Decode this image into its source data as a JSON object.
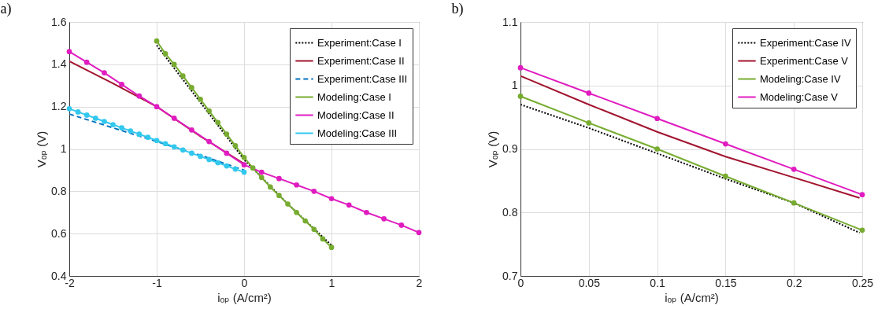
{
  "chart_data": [
    {
      "type": "line",
      "title": "a)",
      "xlabel": "iₒₚ (A/cm²)",
      "ylabel": "Vₒₚ (V)",
      "xlim": [
        -2,
        2
      ],
      "ylim": [
        0.4,
        1.6
      ],
      "xticks": [
        -2,
        -1,
        0,
        1,
        2
      ],
      "yticks": [
        0.4,
        0.6,
        0.8,
        1,
        1.2,
        1.4,
        1.6
      ],
      "grid": true,
      "legend": "top right",
      "series": [
        {
          "name": "Experiment:Case I",
          "color": "#000000",
          "line_style": "dotted",
          "marker": "none",
          "x": [
            -1,
            -0.5,
            0,
            0.5,
            1
          ],
          "values": [
            1.49,
            1.22,
            0.95,
            0.74,
            0.545
          ]
        },
        {
          "name": "Experiment:Case II",
          "color": "#a2142f",
          "line_style": "solid",
          "marker": "none",
          "x": [
            -2,
            -1.5,
            -1,
            -0.5,
            0
          ],
          "values": [
            1.415,
            1.31,
            1.2,
            1.06,
            0.93
          ]
        },
        {
          "name": "Experiment:Case III",
          "color": "#0072bd",
          "line_style": "dashed",
          "marker": "none",
          "x": [
            -2,
            -1.5,
            -1,
            -0.5,
            0
          ],
          "values": [
            1.165,
            1.1,
            1.035,
            0.97,
            0.9
          ]
        },
        {
          "name": "Modeling:Case I",
          "color": "#77ac30",
          "line_style": "solid",
          "marker": "circle",
          "x": [
            -1,
            -0.9,
            -0.8,
            -0.7,
            -0.6,
            -0.5,
            -0.4,
            -0.3,
            -0.2,
            -0.1,
            0,
            0.1,
            0.2,
            0.3,
            0.4,
            0.5,
            0.6,
            0.7,
            0.8,
            0.9,
            1
          ],
          "values": [
            1.51,
            1.45,
            1.4,
            1.345,
            1.29,
            1.235,
            1.18,
            1.125,
            1.07,
            1.015,
            0.96,
            0.91,
            0.865,
            0.82,
            0.78,
            0.74,
            0.7,
            0.66,
            0.62,
            0.575,
            0.535
          ]
        },
        {
          "name": "Modeling:Case II",
          "color": "#e01cc0",
          "line_style": "solid",
          "marker": "circle",
          "x": [
            -2,
            -1.8,
            -1.6,
            -1.4,
            -1.2,
            -1,
            -0.8,
            -0.6,
            -0.4,
            -0.2,
            0,
            0.2,
            0.4,
            0.6,
            0.8,
            1,
            1.2,
            1.4,
            1.6,
            1.8,
            2
          ],
          "values": [
            1.46,
            1.41,
            1.36,
            1.305,
            1.25,
            1.2,
            1.145,
            1.09,
            1.035,
            0.98,
            0.925,
            0.89,
            0.86,
            0.83,
            0.8,
            0.765,
            0.735,
            0.7,
            0.67,
            0.64,
            0.605
          ]
        },
        {
          "name": "Modeling:Case III",
          "color": "#32c8ee",
          "line_style": "solid",
          "marker": "circle",
          "x": [
            -2,
            -1.9,
            -1.8,
            -1.7,
            -1.6,
            -1.5,
            -1.4,
            -1.3,
            -1.2,
            -1.1,
            -1,
            -0.9,
            -0.8,
            -0.7,
            -0.6,
            -0.5,
            -0.4,
            -0.3,
            -0.2,
            -0.1,
            0
          ],
          "values": [
            1.19,
            1.175,
            1.16,
            1.145,
            1.13,
            1.115,
            1.1,
            1.085,
            1.07,
            1.055,
            1.04,
            1.025,
            1.01,
            0.995,
            0.98,
            0.965,
            0.95,
            0.935,
            0.92,
            0.905,
            0.89
          ]
        }
      ]
    },
    {
      "type": "line",
      "title": "b)",
      "xlabel": "iₒₚ (A/cm²)",
      "ylabel": "Vₒₚ (V)",
      "xlim": [
        0,
        0.25
      ],
      "ylim": [
        0.7,
        1.1
      ],
      "xticks": [
        0,
        0.05,
        0.1,
        0.15,
        0.2,
        0.25
      ],
      "yticks": [
        0.7,
        0.8,
        0.9,
        1,
        1.1
      ],
      "grid": true,
      "legend": "top right",
      "series": [
        {
          "name": "Experiment:Case IV",
          "color": "#000000",
          "line_style": "dotted",
          "marker": "none",
          "x": [
            0,
            0.05,
            0.1,
            0.15,
            0.2,
            0.248
          ],
          "values": [
            0.97,
            0.933,
            0.893,
            0.853,
            0.815,
            0.768
          ]
        },
        {
          "name": "Experiment:Case V",
          "color": "#a2142f",
          "line_style": "solid",
          "marker": "none",
          "x": [
            0,
            0.05,
            0.1,
            0.15,
            0.2,
            0.248
          ],
          "values": [
            1.015,
            0.97,
            0.927,
            0.888,
            0.855,
            0.823
          ]
        },
        {
          "name": "Modeling:Case IV",
          "color": "#77ac30",
          "line_style": "solid",
          "marker": "circle",
          "x": [
            0,
            0.05,
            0.1,
            0.15,
            0.2,
            0.25
          ],
          "values": [
            0.983,
            0.941,
            0.9,
            0.857,
            0.815,
            0.772
          ]
        },
        {
          "name": "Modeling:Case V",
          "color": "#e01cc0",
          "line_style": "solid",
          "marker": "circle",
          "x": [
            0,
            0.05,
            0.1,
            0.15,
            0.2,
            0.25
          ],
          "values": [
            1.028,
            0.988,
            0.948,
            0.908,
            0.868,
            0.828
          ]
        }
      ]
    }
  ]
}
